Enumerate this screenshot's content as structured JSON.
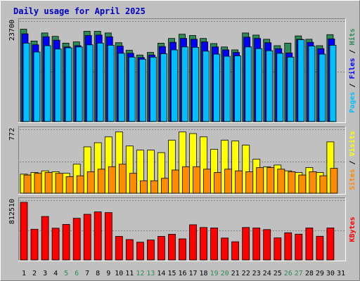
{
  "title": "Daily usage for April 2025",
  "colors": {
    "background": "#c0c0c0",
    "plot": "#c0c0c0",
    "grid": "#808080",
    "title": "#0000c0",
    "hits": "#2e8b57",
    "files": "#0000ff",
    "pages": "#00bfff",
    "visits": "#ffff00",
    "sites": "#ff8c00",
    "kbytes": "#ff0000",
    "weekend_label": "#2e8b57",
    "weekday_label": "#000000"
  },
  "chart_data": [
    {
      "type": "bar",
      "title": "Daily usage for April 2025",
      "categories": [
        "1",
        "2",
        "3",
        "4",
        "5",
        "6",
        "7",
        "8",
        "9",
        "10",
        "11",
        "12",
        "13",
        "14",
        "15",
        "16",
        "17",
        "18",
        "19",
        "20",
        "21",
        "22",
        "23",
        "24",
        "25",
        "26",
        "27",
        "28",
        "29",
        "30",
        "31"
      ],
      "weekend_days": [
        "5",
        "6",
        "12",
        "13",
        "19",
        "20",
        "26",
        "27"
      ],
      "ytick_label": "23700",
      "ylim": [
        0,
        23700
      ],
      "ylabel_parts": [
        "Pages",
        "Files",
        "Hits"
      ],
      "series": [
        {
          "name": "Hits",
          "color": "#2e8b57",
          "values": [
            21800,
            19000,
            20900,
            20100,
            18500,
            18800,
            21300,
            21300,
            20900,
            18600,
            16800,
            15700,
            16300,
            18500,
            19600,
            20600,
            20300,
            19600,
            18400,
            17600,
            16900,
            20900,
            20400,
            19400,
            17900,
            18500,
            20200,
            19400,
            17900,
            20500,
            0
          ]
        },
        {
          "name": "Files",
          "color": "#0000ff",
          "values": [
            20700,
            18100,
            20000,
            19200,
            17600,
            17900,
            20300,
            20400,
            20000,
            17800,
            16100,
            15100,
            15700,
            17700,
            18700,
            19600,
            19400,
            18800,
            17600,
            16900,
            16300,
            19900,
            19600,
            18600,
            17200,
            16200,
            19400,
            18700,
            17200,
            19500,
            0
          ]
        },
        {
          "name": "Pages",
          "color": "#00bfff",
          "values": [
            18500,
            16400,
            17900,
            17100,
            17400,
            17600,
            18100,
            18500,
            18000,
            16100,
            15200,
            14700,
            15200,
            16000,
            16900,
            17600,
            17500,
            16600,
            15900,
            15400,
            15500,
            17600,
            17200,
            16700,
            16100,
            15200,
            19300,
            17800,
            15900,
            18000,
            0
          ]
        }
      ]
    },
    {
      "type": "bar",
      "ytick_label": "772",
      "ylim": [
        0,
        772
      ],
      "ylabel_parts": [
        "Sites",
        "Visits"
      ],
      "series": [
        {
          "name": "Visits",
          "color": "#ffff00",
          "values": [
            230,
            250,
            270,
            260,
            240,
            350,
            560,
            610,
            680,
            740,
            570,
            520,
            520,
            490,
            640,
            740,
            720,
            680,
            530,
            640,
            630,
            580,
            410,
            320,
            340,
            270,
            250,
            310,
            250,
            620,
            0
          ]
        },
        {
          "name": "Sites",
          "color": "#ff8c00",
          "values": [
            220,
            240,
            250,
            240,
            200,
            210,
            260,
            290,
            320,
            350,
            240,
            150,
            150,
            180,
            280,
            320,
            320,
            290,
            250,
            290,
            270,
            260,
            310,
            310,
            290,
            260,
            220,
            260,
            210,
            300,
            0
          ]
        }
      ]
    },
    {
      "type": "bar",
      "ytick_label": "812510",
      "ylim": [
        0,
        812510
      ],
      "ylabel_parts": [
        "KBytes"
      ],
      "series": [
        {
          "name": "KBytes",
          "color": "#ff0000",
          "values": [
            785000,
            418000,
            592000,
            432000,
            484000,
            567000,
            621000,
            654000,
            644000,
            320000,
            277000,
            242000,
            271000,
            320000,
            350000,
            287000,
            479000,
            442000,
            435000,
            298000,
            248000,
            442000,
            435000,
            413000,
            300000,
            370000,
            351000,
            435000,
            322000,
            435000,
            0
          ]
        }
      ]
    }
  ]
}
